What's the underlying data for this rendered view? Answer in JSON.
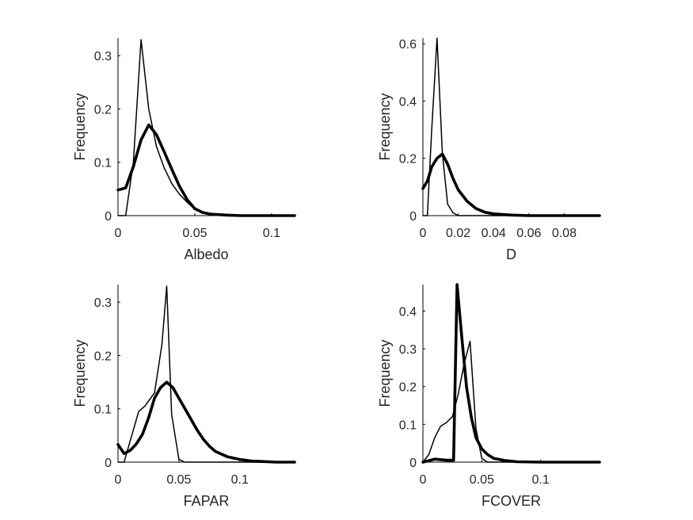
{
  "chart_data": [
    {
      "type": "line",
      "xlabel": "Albedo",
      "ylabel": "Frequency",
      "xlim": [
        0,
        0.115
      ],
      "ylim": [
        0,
        0.333
      ],
      "xticks": [
        0,
        0.05,
        0.1
      ],
      "xtick_labels": [
        "0",
        "0.05",
        "0.1"
      ],
      "yticks": [
        0,
        0.1,
        0.2,
        0.3
      ],
      "ytick_labels": [
        "0",
        "0.1",
        "0.2",
        "0.3"
      ],
      "series": [
        {
          "style": "thin",
          "x": [
            0,
            0.005,
            0.01,
            0.015,
            0.02,
            0.025,
            0.03,
            0.035,
            0.04,
            0.045,
            0.05,
            0.055,
            0.06,
            0.07,
            0.08,
            0.09,
            0.1,
            0.115
          ],
          "y": [
            0,
            0,
            0.1,
            0.33,
            0.2,
            0.13,
            0.09,
            0.06,
            0.04,
            0.025,
            0.012,
            0.006,
            0.003,
            0.001,
            0,
            0,
            0,
            0
          ]
        },
        {
          "style": "thick",
          "x": [
            0,
            0.005,
            0.01,
            0.015,
            0.02,
            0.025,
            0.03,
            0.035,
            0.04,
            0.045,
            0.05,
            0.055,
            0.06,
            0.07,
            0.08,
            0.09,
            0.1,
            0.115
          ],
          "y": [
            0.048,
            0.052,
            0.092,
            0.142,
            0.17,
            0.152,
            0.12,
            0.087,
            0.055,
            0.03,
            0.013,
            0.006,
            0.003,
            0.001,
            0,
            0,
            0,
            0
          ]
        }
      ]
    },
    {
      "type": "line",
      "xlabel": "D",
      "ylabel": "Frequency",
      "xlim": [
        0,
        0.1
      ],
      "ylim": [
        0,
        0.62
      ],
      "xticks": [
        0,
        0.02,
        0.04,
        0.06,
        0.08
      ],
      "xtick_labels": [
        "0",
        "0.02",
        "0.04",
        "0.06",
        "0.08"
      ],
      "yticks": [
        0,
        0.2,
        0.4,
        0.6
      ],
      "ytick_labels": [
        "0",
        "0.2",
        "0.4",
        "0.6"
      ],
      "series": [
        {
          "style": "thin",
          "x": [
            0,
            0.0025,
            0.005,
            0.008,
            0.011,
            0.014,
            0.017,
            0.02,
            0.025,
            0.03,
            0.04,
            0.06,
            0.08,
            0.1
          ],
          "y": [
            0,
            0,
            0.3,
            0.62,
            0.22,
            0.04,
            0.01,
            0,
            0,
            0,
            0,
            0,
            0,
            0
          ]
        },
        {
          "style": "thick",
          "x": [
            0,
            0.0025,
            0.005,
            0.008,
            0.011,
            0.014,
            0.017,
            0.02,
            0.025,
            0.03,
            0.035,
            0.04,
            0.05,
            0.06,
            0.08,
            0.1
          ],
          "y": [
            0.095,
            0.12,
            0.17,
            0.2,
            0.215,
            0.18,
            0.13,
            0.09,
            0.05,
            0.025,
            0.012,
            0.006,
            0.002,
            0,
            0,
            0
          ]
        }
      ]
    },
    {
      "type": "line",
      "xlabel": "FAPAR",
      "ylabel": "Frequency",
      "xlim": [
        0,
        0.145
      ],
      "ylim": [
        0,
        0.333
      ],
      "xticks": [
        0,
        0.05,
        0.1
      ],
      "xtick_labels": [
        "0",
        "0.05",
        "0.1"
      ],
      "yticks": [
        0,
        0.1,
        0.2,
        0.3
      ],
      "ytick_labels": [
        "0",
        "0.1",
        "0.2",
        "0.3"
      ],
      "series": [
        {
          "style": "thin",
          "x": [
            0,
            0.005,
            0.01,
            0.017,
            0.022,
            0.03,
            0.036,
            0.04,
            0.044,
            0.05,
            0.055,
            0.06,
            0.08,
            0.1,
            0.12,
            0.145
          ],
          "y": [
            0,
            0,
            0.04,
            0.095,
            0.105,
            0.13,
            0.22,
            0.33,
            0.09,
            0.005,
            0,
            0,
            0,
            0,
            0,
            0
          ]
        },
        {
          "style": "thick",
          "x": [
            0,
            0.005,
            0.01,
            0.015,
            0.02,
            0.025,
            0.03,
            0.035,
            0.04,
            0.045,
            0.05,
            0.055,
            0.06,
            0.065,
            0.07,
            0.075,
            0.08,
            0.09,
            0.1,
            0.11,
            0.12,
            0.13,
            0.145
          ],
          "y": [
            0.033,
            0.016,
            0.022,
            0.034,
            0.052,
            0.082,
            0.12,
            0.14,
            0.15,
            0.14,
            0.12,
            0.1,
            0.08,
            0.06,
            0.043,
            0.03,
            0.02,
            0.01,
            0.005,
            0.002,
            0.001,
            0,
            0
          ]
        }
      ]
    },
    {
      "type": "line",
      "xlabel": "FCOVER",
      "ylabel": "Frequency",
      "xlim": [
        0,
        0.15
      ],
      "ylim": [
        0,
        0.47
      ],
      "xticks": [
        0,
        0.05,
        0.1
      ],
      "xtick_labels": [
        "0",
        "0.05",
        "0.1"
      ],
      "yticks": [
        0,
        0.1,
        0.2,
        0.3,
        0.4
      ],
      "ytick_labels": [
        "0",
        "0.1",
        "0.2",
        "0.3",
        "0.4"
      ],
      "series": [
        {
          "style": "thin",
          "x": [
            0,
            0.005,
            0.01,
            0.015,
            0.02,
            0.025,
            0.03,
            0.035,
            0.04,
            0.045,
            0.05,
            0.055,
            0.06,
            0.08,
            0.1,
            0.15
          ],
          "y": [
            0,
            0.02,
            0.065,
            0.095,
            0.105,
            0.12,
            0.18,
            0.26,
            0.32,
            0.09,
            0.01,
            0,
            0,
            0,
            0,
            0
          ]
        },
        {
          "style": "thick",
          "x": [
            0,
            0.01,
            0.02,
            0.026,
            0.029,
            0.033,
            0.037,
            0.041,
            0.045,
            0.05,
            0.055,
            0.06,
            0.07,
            0.08,
            0.1,
            0.15
          ],
          "y": [
            0,
            0.008,
            0.005,
            0.005,
            0.47,
            0.33,
            0.2,
            0.12,
            0.065,
            0.035,
            0.02,
            0.01,
            0.004,
            0.001,
            0,
            0
          ]
        }
      ]
    }
  ]
}
